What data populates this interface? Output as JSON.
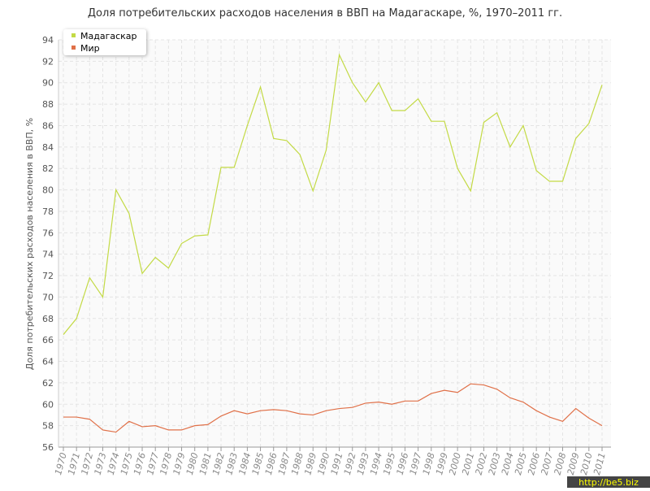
{
  "chart_data": {
    "type": "line",
    "title": "Доля потребительских расходов населения в ВВП на Мадагаскаре, %, 1970–2011 гг.",
    "y_label": "Доля потребительских расходов населения в ВВП, %",
    "watermark": "http://be5.biz",
    "x": [
      1970,
      1971,
      1972,
      1973,
      1974,
      1975,
      1976,
      1977,
      1978,
      1979,
      1980,
      1981,
      1982,
      1983,
      1984,
      1985,
      1986,
      1987,
      1988,
      1989,
      1990,
      1991,
      1992,
      1993,
      1994,
      1995,
      1996,
      1997,
      1998,
      1999,
      2000,
      2001,
      2002,
      2003,
      2004,
      2005,
      2006,
      2007,
      2008,
      2009,
      2010,
      2011
    ],
    "xlim": [
      1970,
      2011
    ],
    "ylim": [
      56,
      94
    ],
    "yticks": [
      56,
      58,
      60,
      62,
      64,
      66,
      68,
      70,
      72,
      74,
      76,
      78,
      80,
      82,
      84,
      86,
      88,
      90,
      92,
      94
    ],
    "grid": true,
    "legend": "top-left",
    "series": [
      {
        "name": "Мадагаскар",
        "color": "#c3da45",
        "values": [
          66.5,
          68.0,
          71.8,
          70.0,
          80.0,
          77.8,
          72.2,
          73.7,
          72.7,
          75.0,
          75.7,
          75.8,
          82.1,
          82.1,
          86.0,
          89.6,
          84.8,
          84.6,
          83.3,
          79.9,
          83.7,
          92.6,
          90.0,
          88.2,
          90.0,
          87.4,
          87.4,
          88.5,
          86.4,
          86.4,
          82.0,
          79.9,
          86.3,
          87.2,
          84.0,
          86.0,
          81.8,
          80.8,
          80.8,
          84.8,
          86.2,
          89.8
        ]
      },
      {
        "name": "Мир",
        "color": "#e07048",
        "values": [
          58.8,
          58.8,
          58.6,
          57.6,
          57.4,
          58.4,
          57.9,
          58.0,
          57.6,
          57.6,
          58.0,
          58.1,
          58.9,
          59.4,
          59.1,
          59.4,
          59.5,
          59.4,
          59.1,
          59.0,
          59.4,
          59.6,
          59.7,
          60.1,
          60.2,
          60.0,
          60.3,
          60.3,
          61.0,
          61.3,
          61.1,
          61.9,
          61.8,
          61.4,
          60.6,
          60.2,
          59.4,
          58.8,
          58.4,
          59.6,
          58.7,
          58.0
        ]
      }
    ]
  }
}
